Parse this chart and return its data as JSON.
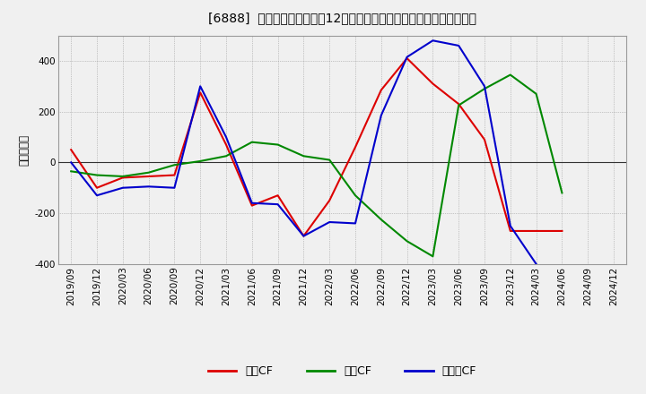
{
  "title": "[6888]  キャッシュフローの12か月移動合計の対前年同期増減額の推移",
  "ylabel": "（百万円）",
  "background_color": "#f0f0f0",
  "plot_bg_color": "#f0f0f0",
  "grid_color": "#aaaaaa",
  "ylim": [
    -400,
    500
  ],
  "yticks": [
    -400,
    -200,
    0,
    200,
    400
  ],
  "x_labels": [
    "2019/09",
    "2019/12",
    "2020/03",
    "2020/06",
    "2020/09",
    "2020/12",
    "2021/03",
    "2021/06",
    "2021/09",
    "2021/12",
    "2022/03",
    "2022/06",
    "2022/09",
    "2022/12",
    "2023/03",
    "2023/06",
    "2023/09",
    "2023/12",
    "2024/03",
    "2024/06",
    "2024/09",
    "2024/12"
  ],
  "series": {
    "営業CF": {
      "color": "#dd0000",
      "values": [
        50,
        -100,
        -60,
        -55,
        -50,
        275,
        70,
        -170,
        -130,
        -290,
        -150,
        60,
        285,
        410,
        310,
        230,
        90,
        -270,
        -270,
        -270,
        null,
        null
      ]
    },
    "投賃CF": {
      "color": "#008800",
      "values": [
        -35,
        -50,
        -55,
        -40,
        -10,
        5,
        25,
        80,
        70,
        25,
        10,
        -130,
        -225,
        -310,
        -370,
        225,
        290,
        345,
        270,
        -120,
        null,
        null
      ]
    },
    "フリーCF": {
      "color": "#0000cc",
      "values": [
        0,
        -130,
        -100,
        -95,
        -100,
        300,
        100,
        -160,
        -165,
        -290,
        -235,
        -240,
        185,
        415,
        480,
        460,
        300,
        -250,
        -400,
        null,
        null,
        null
      ]
    }
  },
  "legend_labels": [
    "営業CF",
    "投賃CF",
    "フリーCF"
  ],
  "legend_colors": [
    "#dd0000",
    "#008800",
    "#0000cc"
  ]
}
